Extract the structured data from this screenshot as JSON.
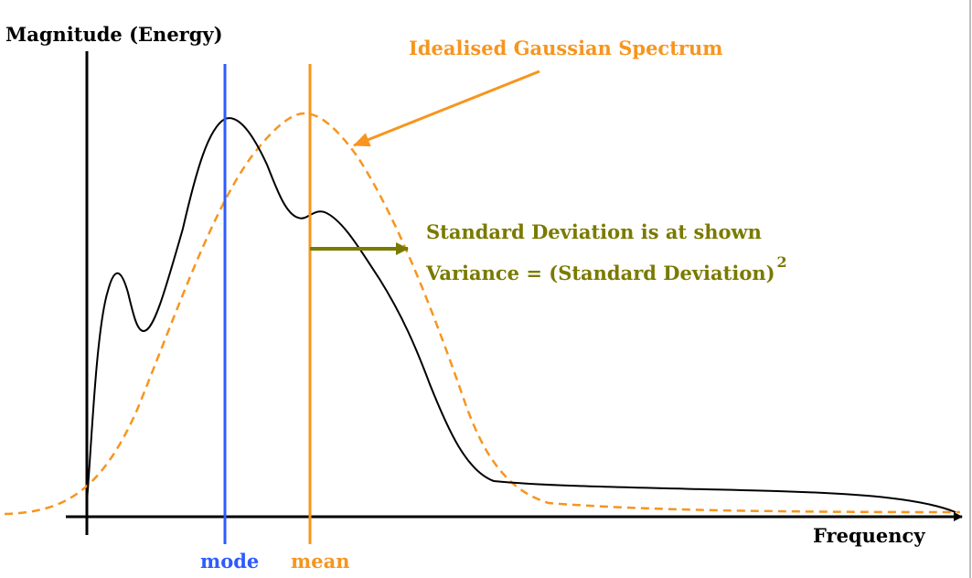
{
  "colors": {
    "axis": "#000000",
    "spectrum": "#000000",
    "gaussian": "#F7951E",
    "mode": "#2E5BFF",
    "mean": "#F7951E",
    "std": "#7A7A00"
  },
  "labels": {
    "y_axis": "Magnitude (Energy)",
    "x_axis": "Frequency",
    "mode": "mode",
    "mean": "mean",
    "gaussian": "Idealised Gaussian Spectrum",
    "std": "Standard Deviation is at shown",
    "variance": "Variance = (Standard Deviation)",
    "variance_exponent": "2"
  }
}
